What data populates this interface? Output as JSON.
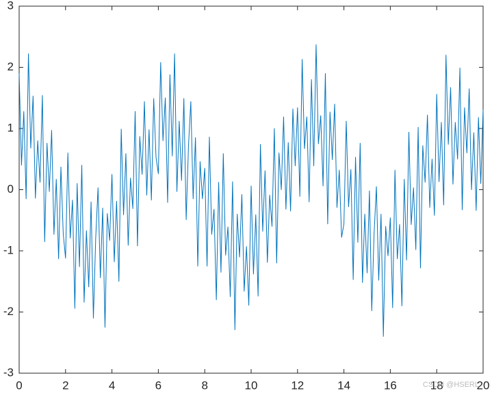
{
  "chart_data": {
    "type": "line",
    "x": [
      0,
      0.1,
      0.2,
      0.3,
      0.4,
      0.5,
      0.6,
      0.7,
      0.8,
      0.9,
      1,
      1.1,
      1.2,
      1.3,
      1.4,
      1.5,
      1.6,
      1.7,
      1.8,
      1.9,
      2,
      2.1,
      2.2,
      2.3,
      2.4,
      2.5,
      2.6,
      2.7,
      2.8,
      2.9,
      3,
      3.1,
      3.2,
      3.3,
      3.4,
      3.5,
      3.6,
      3.7,
      3.8,
      3.9,
      4,
      4.1,
      4.2,
      4.3,
      4.4,
      4.5,
      4.6,
      4.7,
      4.8,
      4.9,
      5,
      5.1,
      5.2,
      5.3,
      5.4,
      5.5,
      5.6,
      5.7,
      5.8,
      5.9,
      6,
      6.1,
      6.2,
      6.3,
      6.4,
      6.5,
      6.6,
      6.7,
      6.8,
      6.9,
      7,
      7.1,
      7.2,
      7.3,
      7.4,
      7.5,
      7.6,
      7.7,
      7.8,
      7.9,
      8,
      8.1,
      8.2,
      8.3,
      8.4,
      8.5,
      8.6,
      8.7,
      8.8,
      8.9,
      9,
      9.1,
      9.2,
      9.3,
      9.4,
      9.5,
      9.6,
      9.7,
      9.8,
      9.9,
      10,
      10.1,
      10.2,
      10.3,
      10.4,
      10.5,
      10.6,
      10.7,
      10.8,
      10.9,
      11,
      11.1,
      11.2,
      11.3,
      11.4,
      11.5,
      11.6,
      11.7,
      11.8,
      11.9,
      12,
      12.1,
      12.2,
      12.3,
      12.4,
      12.5,
      12.6,
      12.7,
      12.8,
      12.9,
      13,
      13.1,
      13.2,
      13.3,
      13.4,
      13.5,
      13.6,
      13.7,
      13.8,
      13.9,
      14,
      14.1,
      14.2,
      14.3,
      14.4,
      14.5,
      14.6,
      14.7,
      14.8,
      14.9,
      15,
      15.1,
      15.2,
      15.3,
      15.4,
      15.5,
      15.6,
      15.7,
      15.8,
      15.9,
      16,
      16.1,
      16.2,
      16.3,
      16.4,
      16.5,
      16.6,
      16.7,
      16.8,
      16.9,
      17,
      17.1,
      17.2,
      17.3,
      17.4,
      17.5,
      17.6,
      17.7,
      17.8,
      17.9,
      18,
      18.1,
      18.2,
      18.3,
      18.4,
      18.5,
      18.6,
      18.7,
      18.8,
      18.9,
      19,
      19.1,
      19.2,
      19.3,
      19.4,
      19.5,
      19.6,
      19.7,
      19.8,
      19.9,
      20
    ],
    "series": [
      {
        "color": "#0072bd",
        "values": [
          1.9,
          0.4,
          1.28,
          -0.15,
          2.22,
          0.68,
          1.53,
          -0.14,
          0.8,
          0.12,
          1.54,
          -0.85,
          0.76,
          -0.03,
          0.97,
          -0.73,
          0.17,
          -1.13,
          0.37,
          -0.72,
          -1.12,
          0.6,
          -0.79,
          -0.17,
          -1.94,
          0.1,
          -1.26,
          0.4,
          -1.84,
          -0.67,
          -1.59,
          -0.2,
          -2.1,
          -0.79,
          0.03,
          -1.44,
          -0.3,
          -2.25,
          -0.39,
          -0.83,
          0.25,
          -1.18,
          -0.19,
          -1.5,
          0.99,
          -0.41,
          0.59,
          -0.91,
          0.19,
          -0.31,
          1.28,
          -0.92,
          0.87,
          0.25,
          1.44,
          -0.09,
          0.98,
          -0.17,
          1.49,
          0.53,
          0.26,
          2.08,
          0.8,
          1.5,
          -0.21,
          1.88,
          0.55,
          2.22,
          -0.03,
          1.12,
          0.15,
          1.49,
          -0.49,
          0.72,
          1.44,
          -0.15,
          0.85,
          -1.25,
          0.46,
          -0.15,
          0.35,
          -1.25,
          0.86,
          -0.73,
          -0.32,
          -1.8,
          0.12,
          -1.35,
          0.59,
          -1.07,
          -0.61,
          -1.75,
          0.13,
          -2.29,
          -0.4,
          -1.1,
          -0.08,
          -1.66,
          -0.93,
          -1.89,
          0.06,
          -1.38,
          -0.41,
          -1.74,
          0.74,
          -0.68,
          0.31,
          -1.19,
          -0.09,
          -0.6,
          1.0,
          -1.2,
          0.6,
          0,
          1.19,
          -0.32,
          0.77,
          -0.35,
          1.32,
          0.39,
          1.34,
          -0.11,
          2.13,
          0.67,
          1.19,
          -0.2,
          1.8,
          0.39,
          2.37,
          0.75,
          1.21,
          0.06,
          1.9,
          -0.56,
          1.27,
          0.49,
          1.4,
          -0.29,
          0.32,
          -0.78,
          -0.56,
          1.12,
          -0.28,
          0.33,
          -1.47,
          0.53,
          -0.86,
          0.76,
          -1.52,
          -0.4,
          -1.36,
          -0.02,
          -1.98,
          -0.72,
          0.05,
          -1.48,
          -0.4,
          -2.4,
          -0.6,
          -1.08,
          -0.46,
          -1.93,
          0.32,
          -1.13,
          -0.57,
          -1.9,
          0.17,
          -1.15,
          0.94,
          -0.57,
          0.03,
          -0.98,
          1.02,
          -1.28,
          0.72,
          0.12,
          1.22,
          -0.29,
          0.5,
          -0.42,
          1.56,
          0.13,
          1.1,
          -0.25,
          2.2,
          0.74,
          1.67,
          0.09,
          1.1,
          0.5,
          1.99,
          -0.33,
          1.34,
          0.6,
          1.65,
          0,
          0.93,
          -0.34,
          1.18,
          0.1,
          1.31
        ]
      }
    ],
    "xlim": [
      0,
      20
    ],
    "xticks": [
      0,
      2,
      4,
      6,
      8,
      10,
      12,
      14,
      16,
      18,
      20
    ],
    "ylim": [
      -3,
      3
    ],
    "yticks": [
      -3,
      -2,
      -1,
      0,
      1,
      2,
      3
    ],
    "watermark": "CSDN @HSERL"
  }
}
